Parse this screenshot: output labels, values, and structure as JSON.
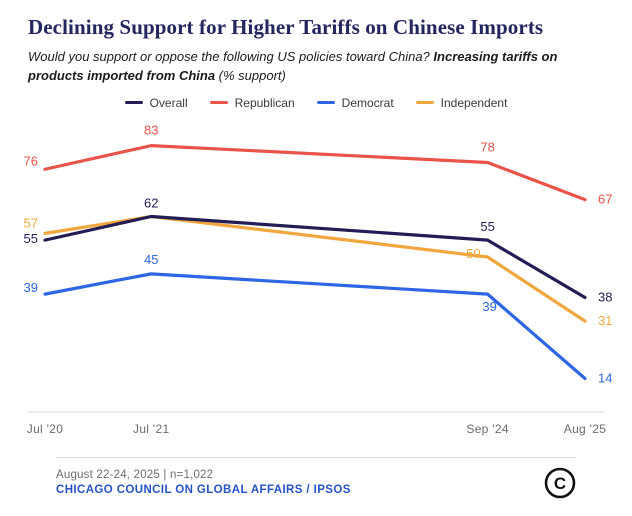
{
  "header": {
    "title": "Declining Support for Higher Tariffs on Chinese Imports",
    "subtitle_regular": "Would you support or oppose the following US policies toward China? ",
    "subtitle_bold": "Increasing tariffs on products imported from China",
    "subtitle_suffix": " (% support)"
  },
  "chart_data": {
    "type": "line",
    "x": [
      "Jul '20",
      "Jul '21",
      "Sep '24",
      "Aug '25"
    ],
    "x_months": [
      0,
      12,
      50,
      61
    ],
    "ylabel": "% support",
    "ylim": [
      10,
      90
    ],
    "grid": false,
    "legend_position": "top",
    "series": [
      {
        "name": "Overall",
        "color": "#221d54",
        "values": [
          55,
          62,
          55,
          38
        ]
      },
      {
        "name": "Republican",
        "color": "#e8534a",
        "values": [
          76,
          83,
          78,
          67
        ]
      },
      {
        "name": "Democrat",
        "color": "#2e66e5",
        "values": [
          39,
          45,
          39,
          14
        ]
      },
      {
        "name": "Independent",
        "color": "#efa73e",
        "values": [
          57,
          62,
          50,
          31
        ]
      }
    ]
  },
  "footer": {
    "source_line": "August 22-24, 2025 | n=1,022",
    "org_line": "CHICAGO COUNCIL ON GLOBAL AFFAIRS / IPSOS",
    "logo": "chicago-council-logo"
  },
  "colors": {
    "title": "#23265f",
    "footer_org": "#2453c4",
    "axis_line": "#d9d9d9",
    "tick_text": "#6b6b6b"
  }
}
